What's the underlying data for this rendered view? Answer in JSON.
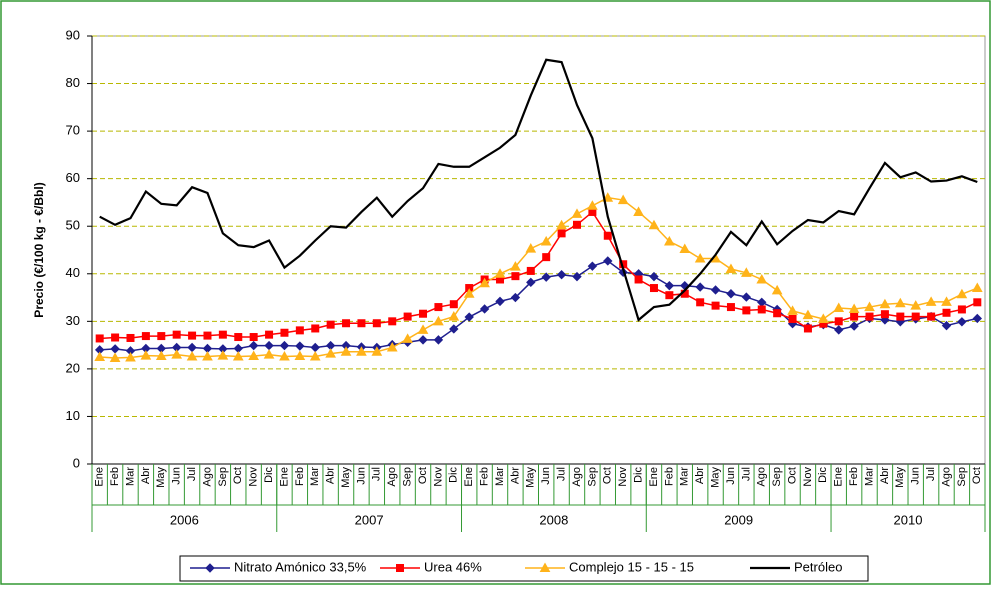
{
  "chart_data": {
    "type": "line",
    "y_label": "Precio (€/100 kg - €/Bbl)",
    "categories": [
      "Ene",
      "Feb",
      "Mar",
      "Abr",
      "May",
      "Jun",
      "Jul",
      "Ago",
      "Sep",
      "Oct",
      "Nov",
      "Dic",
      "Ene",
      "Feb",
      "Mar",
      "Abr",
      "May",
      "Jun",
      "Jul",
      "Ago",
      "Sep",
      "Oct",
      "Nov",
      "Dic",
      "Ene",
      "Feb",
      "Mar",
      "Abr",
      "May",
      "Jun",
      "Jul",
      "Ago",
      "Sep",
      "Oct",
      "Nov",
      "Dic",
      "Ene",
      "Feb",
      "Mar",
      "Abr",
      "May",
      "Jun",
      "Jul",
      "Ago",
      "Sep",
      "Oct",
      "Nov",
      "Dic",
      "Ene",
      "Feb",
      "Mar",
      "Abr",
      "May",
      "Jun",
      "Jul",
      "Ago",
      "Sep",
      "Oct"
    ],
    "year_labels": [
      "2006",
      "2007",
      "2008",
      "2009",
      "2010"
    ],
    "ylim": [
      0,
      90
    ],
    "yticks": [
      0,
      10,
      20,
      30,
      40,
      50,
      60,
      70,
      80,
      90
    ],
    "grid": true,
    "series": [
      {
        "name": "Nitrato Amónico 33,5%",
        "color": "#1f1f8f",
        "marker": "diamond",
        "values": [
          24,
          24.2,
          23.8,
          24.3,
          24.3,
          24.5,
          24.5,
          24.3,
          24.2,
          24.3,
          24.9,
          24.9,
          24.9,
          24.8,
          24.5,
          24.9,
          24.9,
          24.6,
          24.5,
          25.1,
          25.6,
          26.1,
          26.1,
          28.4,
          30.9,
          32.6,
          34.2,
          35,
          38.2,
          39.3,
          39.8,
          39.4,
          41.6,
          42.7,
          40.3,
          40,
          39.4,
          37.5,
          37.5,
          37.2,
          36.6,
          35.8,
          35.1,
          34,
          32.5,
          29.5,
          28.8,
          29.3,
          28.2,
          29,
          30.6,
          30.3,
          29.9,
          30.5,
          31,
          29.1,
          29.9,
          30.6
        ]
      },
      {
        "name": "Urea 46%",
        "color": "#ff0000",
        "marker": "square",
        "values": [
          26.4,
          26.6,
          26.5,
          26.9,
          26.9,
          27.2,
          27,
          27,
          27.2,
          26.7,
          26.7,
          27.2,
          27.6,
          28.1,
          28.5,
          29.3,
          29.6,
          29.6,
          29.6,
          30,
          31,
          31.6,
          33,
          33.6,
          37,
          38.8,
          38.8,
          39.5,
          40.6,
          43.5,
          48.5,
          50.3,
          53,
          48,
          42,
          38.8,
          37,
          35.5,
          35.8,
          34,
          33.3,
          33,
          32.3,
          32.5,
          31.7,
          30.5,
          28.5,
          29.5,
          30,
          31,
          31,
          31.5,
          31,
          31,
          31,
          31.8,
          32.5,
          34
        ]
      },
      {
        "name": "Complejo 15 - 15 - 15",
        "color": "#ffb31a",
        "marker": "triangle",
        "values": [
          22.5,
          22.3,
          22.4,
          22.8,
          22.7,
          23,
          22.6,
          22.6,
          22.8,
          22.6,
          22.7,
          23,
          22.6,
          22.7,
          22.6,
          23.2,
          23.6,
          23.6,
          23.6,
          24.5,
          26.3,
          28.2,
          30,
          31,
          35.8,
          38,
          40,
          41.5,
          45.3,
          46.8,
          50.2,
          52.6,
          54.3,
          56,
          55.5,
          53,
          50.2,
          46.8,
          45.2,
          43.2,
          43.2,
          41,
          40.2,
          38.8,
          36.5,
          32.2,
          31.3,
          30.5,
          32.8,
          32.6,
          33,
          33.6,
          33.8,
          33.3,
          34.1,
          34.1,
          35.7,
          37
        ]
      },
      {
        "name": "Petróleo",
        "color": "#000000",
        "marker": "none",
        "values": [
          52,
          50.3,
          51.7,
          57.3,
          54.7,
          54.4,
          58.2,
          57,
          48.5,
          46,
          45.6,
          47,
          41.3,
          43.8,
          47,
          50,
          49.7,
          53,
          56,
          52,
          55.3,
          58,
          63.1,
          62.5,
          62.5,
          64.5,
          66.5,
          69.2,
          77.5,
          85,
          84.5,
          75.5,
          68.5,
          52,
          41,
          30.3,
          33,
          33.5,
          36.5,
          40,
          44,
          48.8,
          46,
          51,
          46.2,
          49,
          51.3,
          50.8,
          53.2,
          52.5,
          58,
          63.3,
          60.3,
          61.3,
          59.4,
          59.6,
          60.5,
          59.3
        ]
      }
    ]
  }
}
